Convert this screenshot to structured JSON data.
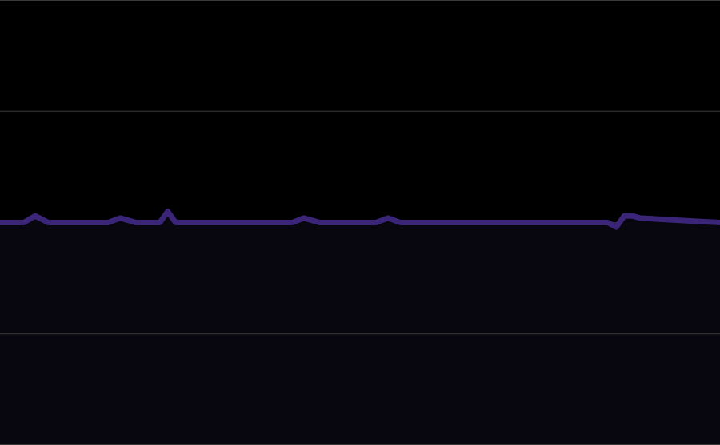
{
  "colors": {
    "background": "#000000",
    "gridline": "#3a3a3a",
    "line": "#3a2578",
    "area_fill": "#08060f"
  },
  "chart_data": {
    "type": "area",
    "title": "",
    "xlabel": "",
    "ylabel": "",
    "grid": true,
    "legend": "none",
    "ylim": [
      0,
      2
    ],
    "y_gridlines": [
      0,
      0.5,
      1,
      1.5,
      2
    ],
    "x": [
      0,
      0.015,
      0.033,
      0.049,
      0.067,
      0.083,
      0.111,
      0.15,
      0.167,
      0.189,
      0.222,
      0.233,
      0.244,
      0.256,
      0.278,
      0.333,
      0.367,
      0.406,
      0.422,
      0.444,
      0.522,
      0.539,
      0.556,
      0.844,
      0.856,
      0.867,
      0.878,
      0.889,
      0.944,
      1
    ],
    "series": [
      {
        "values": [
          1.0,
          1.0,
          1.0,
          1.03,
          1.0,
          1.0,
          1.0,
          1.0,
          1.02,
          1.0,
          1.0,
          1.05,
          1.0,
          1.0,
          1.0,
          1.0,
          1.0,
          1.0,
          1.02,
          1.0,
          1.0,
          1.02,
          1.0,
          1.0,
          0.98,
          1.03,
          1.03,
          1.02,
          1.01,
          1.0
        ]
      }
    ]
  }
}
